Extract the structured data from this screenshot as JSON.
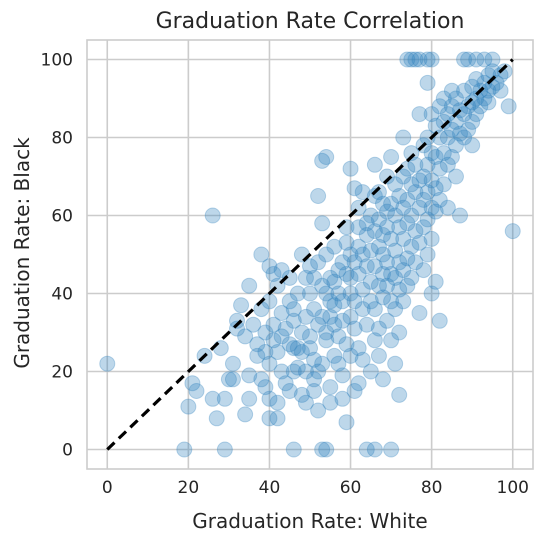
{
  "chart_data": {
    "type": "scatter",
    "title": "Graduation Rate Correlation",
    "xlabel": "Graduation Rate: White",
    "ylabel": "Graduation Rate: Black",
    "xlim": [
      -5,
      105
    ],
    "ylim": [
      -5,
      105
    ],
    "xticks": [
      0,
      20,
      40,
      60,
      80,
      100
    ],
    "yticks": [
      0,
      20,
      40,
      60,
      80,
      100
    ],
    "grid": true,
    "point_color": "#3182bd",
    "reference_line": {
      "style": "dashed",
      "color": "#000000",
      "from": [
        0,
        0
      ],
      "to": [
        100,
        100
      ]
    },
    "points": [
      [
        0,
        22
      ],
      [
        19,
        0
      ],
      [
        20,
        11
      ],
      [
        21,
        17
      ],
      [
        22,
        15
      ],
      [
        24,
        24
      ],
      [
        26,
        60
      ],
      [
        26,
        13
      ],
      [
        27,
        8
      ],
      [
        28,
        26
      ],
      [
        29,
        13
      ],
      [
        29,
        0
      ],
      [
        30,
        18
      ],
      [
        31,
        22
      ],
      [
        31,
        18
      ],
      [
        32,
        31
      ],
      [
        32,
        33
      ],
      [
        33,
        37
      ],
      [
        34,
        29
      ],
      [
        34,
        9
      ],
      [
        35,
        42
      ],
      [
        35,
        19
      ],
      [
        35,
        13
      ],
      [
        36,
        32
      ],
      [
        37,
        24
      ],
      [
        37,
        27
      ],
      [
        38,
        50
      ],
      [
        38,
        18
      ],
      [
        38,
        36
      ],
      [
        39,
        25
      ],
      [
        39,
        30
      ],
      [
        39,
        16
      ],
      [
        40,
        47
      ],
      [
        40,
        38
      ],
      [
        40,
        22
      ],
      [
        40,
        8
      ],
      [
        40,
        13
      ],
      [
        41,
        45
      ],
      [
        41,
        28
      ],
      [
        41,
        32
      ],
      [
        42,
        42
      ],
      [
        42,
        25
      ],
      [
        42,
        8
      ],
      [
        42,
        12
      ],
      [
        43,
        46
      ],
      [
        43,
        29
      ],
      [
        43,
        20
      ],
      [
        43,
        35
      ],
      [
        44,
        31
      ],
      [
        44,
        17
      ],
      [
        45,
        44
      ],
      [
        45,
        38
      ],
      [
        45,
        27
      ],
      [
        45,
        15
      ],
      [
        46,
        33
      ],
      [
        46,
        26
      ],
      [
        46,
        20
      ],
      [
        46,
        36
      ],
      [
        46,
        0
      ],
      [
        47,
        26
      ],
      [
        47,
        40
      ],
      [
        47,
        21
      ],
      [
        48,
        50
      ],
      [
        48,
        30
      ],
      [
        48,
        14
      ],
      [
        48,
        25
      ],
      [
        49,
        44
      ],
      [
        49,
        34
      ],
      [
        49,
        20
      ],
      [
        49,
        12
      ],
      [
        50,
        47
      ],
      [
        50,
        29
      ],
      [
        50,
        40
      ],
      [
        50,
        26
      ],
      [
        51,
        36
      ],
      [
        51,
        23
      ],
      [
        51,
        44
      ],
      [
        51,
        15
      ],
      [
        51,
        18
      ],
      [
        52,
        65
      ],
      [
        52,
        32
      ],
      [
        52,
        48
      ],
      [
        52,
        20
      ],
      [
        52,
        10
      ],
      [
        53,
        58
      ],
      [
        53,
        34
      ],
      [
        53,
        22
      ],
      [
        53,
        42
      ],
      [
        53,
        74
      ],
      [
        53,
        0
      ],
      [
        54,
        75
      ],
      [
        54,
        40
      ],
      [
        54,
        28
      ],
      [
        54,
        30
      ],
      [
        54,
        50
      ],
      [
        54,
        0
      ],
      [
        55,
        44
      ],
      [
        55,
        34
      ],
      [
        55,
        38
      ],
      [
        55,
        16
      ],
      [
        55,
        12
      ],
      [
        56,
        52
      ],
      [
        56,
        43
      ],
      [
        56,
        32
      ],
      [
        56,
        24
      ],
      [
        56,
        37
      ],
      [
        57,
        46
      ],
      [
        57,
        40
      ],
      [
        57,
        22
      ],
      [
        57,
        29
      ],
      [
        58,
        48
      ],
      [
        58,
        38
      ],
      [
        58,
        33
      ],
      [
        58,
        13
      ],
      [
        58,
        19
      ],
      [
        59,
        57
      ],
      [
        59,
        45
      ],
      [
        59,
        53
      ],
      [
        59,
        27
      ],
      [
        59,
        7
      ],
      [
        60,
        72
      ],
      [
        60,
        50
      ],
      [
        60,
        40
      ],
      [
        60,
        34
      ],
      [
        60,
        44
      ],
      [
        60,
        24
      ],
      [
        61,
        67
      ],
      [
        61,
        48
      ],
      [
        61,
        38
      ],
      [
        61,
        31
      ],
      [
        61,
        15
      ],
      [
        62,
        57
      ],
      [
        62,
        62
      ],
      [
        62,
        45
      ],
      [
        62,
        52
      ],
      [
        62,
        26
      ],
      [
        62,
        17
      ],
      [
        63,
        66
      ],
      [
        63,
        50
      ],
      [
        63,
        36
      ],
      [
        63,
        41
      ],
      [
        63,
        23
      ],
      [
        64,
        55
      ],
      [
        64,
        47
      ],
      [
        64,
        32
      ],
      [
        64,
        58
      ],
      [
        64,
        0
      ],
      [
        65,
        60
      ],
      [
        65,
        51
      ],
      [
        65,
        43
      ],
      [
        65,
        38
      ],
      [
        65,
        20
      ],
      [
        66,
        73
      ],
      [
        66,
        56
      ],
      [
        66,
        47
      ],
      [
        66,
        36
      ],
      [
        66,
        28
      ],
      [
        66,
        65
      ],
      [
        66,
        0
      ],
      [
        67,
        66
      ],
      [
        67,
        59
      ],
      [
        67,
        52
      ],
      [
        67,
        42
      ],
      [
        67,
        31
      ],
      [
        67,
        24
      ],
      [
        68,
        63
      ],
      [
        68,
        50
      ],
      [
        68,
        45
      ],
      [
        68,
        55
      ],
      [
        68,
        39
      ],
      [
        68,
        18
      ],
      [
        69,
        70
      ],
      [
        69,
        57
      ],
      [
        69,
        48
      ],
      [
        69,
        42
      ],
      [
        69,
        33
      ],
      [
        69,
        61
      ],
      [
        70,
        75
      ],
      [
        70,
        63
      ],
      [
        70,
        54
      ],
      [
        70,
        45
      ],
      [
        70,
        38
      ],
      [
        70,
        28
      ],
      [
        70,
        0
      ],
      [
        71,
        68
      ],
      [
        71,
        60
      ],
      [
        71,
        51
      ],
      [
        71,
        44
      ],
      [
        71,
        36
      ],
      [
        71,
        22
      ],
      [
        72,
        65
      ],
      [
        72,
        57
      ],
      [
        72,
        48
      ],
      [
        72,
        41
      ],
      [
        72,
        30
      ],
      [
        72,
        14
      ],
      [
        73,
        80
      ],
      [
        73,
        70
      ],
      [
        73,
        62
      ],
      [
        73,
        54
      ],
      [
        73,
        46
      ],
      [
        73,
        38
      ],
      [
        74,
        72
      ],
      [
        74,
        64
      ],
      [
        74,
        58
      ],
      [
        74,
        49
      ],
      [
        74,
        42
      ],
      [
        74,
        100
      ],
      [
        75,
        76
      ],
      [
        75,
        68
      ],
      [
        75,
        60
      ],
      [
        75,
        52
      ],
      [
        75,
        44
      ],
      [
        75,
        100
      ],
      [
        76,
        73
      ],
      [
        76,
        66
      ],
      [
        76,
        56
      ],
      [
        76,
        48
      ],
      [
        76,
        100
      ],
      [
        77,
        86
      ],
      [
        77,
        69
      ],
      [
        77,
        62
      ],
      [
        77,
        53
      ],
      [
        77,
        35
      ],
      [
        77,
        100
      ],
      [
        78,
        78
      ],
      [
        78,
        70
      ],
      [
        78,
        64
      ],
      [
        78,
        57
      ],
      [
        78,
        46
      ],
      [
        79,
        80
      ],
      [
        79,
        73
      ],
      [
        79,
        66
      ],
      [
        79,
        59
      ],
      [
        79,
        50
      ],
      [
        79,
        94
      ],
      [
        79,
        100
      ],
      [
        80,
        86
      ],
      [
        80,
        76
      ],
      [
        80,
        69
      ],
      [
        80,
        62
      ],
      [
        80,
        54
      ],
      [
        80,
        40
      ],
      [
        80,
        100
      ],
      [
        81,
        83
      ],
      [
        81,
        75
      ],
      [
        81,
        67
      ],
      [
        81,
        61
      ],
      [
        81,
        43
      ],
      [
        82,
        88
      ],
      [
        82,
        80
      ],
      [
        82,
        72
      ],
      [
        82,
        64
      ],
      [
        82,
        33
      ],
      [
        83,
        90
      ],
      [
        83,
        84
      ],
      [
        83,
        76
      ],
      [
        83,
        68
      ],
      [
        84,
        86
      ],
      [
        84,
        80
      ],
      [
        84,
        73
      ],
      [
        84,
        62
      ],
      [
        85,
        92
      ],
      [
        85,
        88
      ],
      [
        85,
        82
      ],
      [
        85,
        75
      ],
      [
        86,
        90
      ],
      [
        86,
        84
      ],
      [
        86,
        78
      ],
      [
        86,
        70
      ],
      [
        87,
        87
      ],
      [
        87,
        81
      ],
      [
        87,
        60
      ],
      [
        88,
        92
      ],
      [
        88,
        86
      ],
      [
        88,
        80
      ],
      [
        88,
        100
      ],
      [
        89,
        88
      ],
      [
        89,
        82
      ],
      [
        89,
        100
      ],
      [
        90,
        93
      ],
      [
        90,
        89
      ],
      [
        90,
        84
      ],
      [
        90,
        78
      ],
      [
        91,
        95
      ],
      [
        91,
        90
      ],
      [
        91,
        86
      ],
      [
        91,
        100
      ],
      [
        92,
        92
      ],
      [
        92,
        88
      ],
      [
        93,
        94
      ],
      [
        93,
        90
      ],
      [
        93,
        100
      ],
      [
        94,
        96
      ],
      [
        94,
        92
      ],
      [
        94,
        89
      ],
      [
        95,
        97
      ],
      [
        95,
        93
      ],
      [
        95,
        100
      ],
      [
        96,
        94
      ],
      [
        97,
        96
      ],
      [
        97,
        92
      ],
      [
        98,
        97
      ],
      [
        99,
        88
      ],
      [
        100,
        56
      ]
    ]
  }
}
